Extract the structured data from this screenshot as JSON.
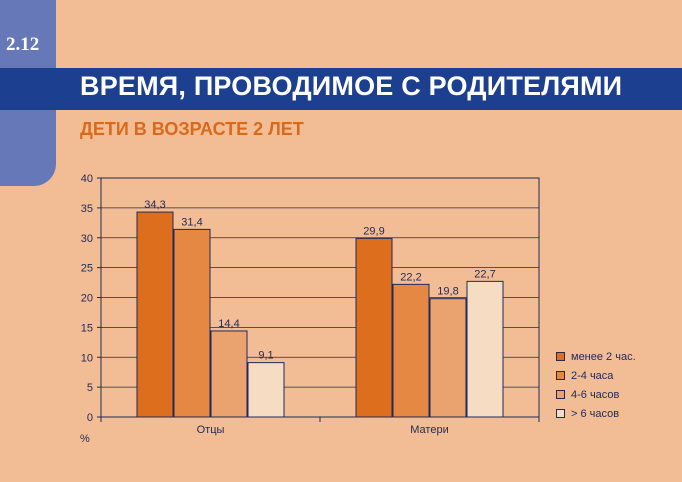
{
  "header": {
    "section_number": "2.12",
    "title": "ВРЕМЯ, ПРОВОДИМОЕ С РОДИТЕЛЯМИ",
    "subtitle": "ДЕТИ В ВОЗРАСТЕ 2 ЛЕТ"
  },
  "chart_data": {
    "type": "bar",
    "categories": [
      "Отцы",
      "Матери"
    ],
    "series": [
      {
        "name": "менее 2 час.",
        "color": "#dd6e1e",
        "values": [
          34.3,
          29.9
        ],
        "labels": [
          "34,3",
          "29,9"
        ]
      },
      {
        "name": "2-4 часа",
        "color": "#e58844",
        "values": [
          31.4,
          22.2
        ],
        "labels": [
          "31,4",
          "22,2"
        ]
      },
      {
        "name": "4-6 часов",
        "color": "#eaa36e",
        "values": [
          14.4,
          19.8
        ],
        "labels": [
          "14,4",
          "19,8"
        ]
      },
      {
        "name": "> 6 часов",
        "color": "#f7dcc4",
        "values": [
          9.1,
          22.7
        ],
        "labels": [
          "9,1",
          "22,7"
        ]
      }
    ],
    "ylabel": "%",
    "ylim": [
      0,
      40
    ],
    "yticks": [
      0,
      5,
      10,
      15,
      20,
      25,
      30,
      35,
      40
    ],
    "grid": true,
    "legend_position": "right"
  }
}
